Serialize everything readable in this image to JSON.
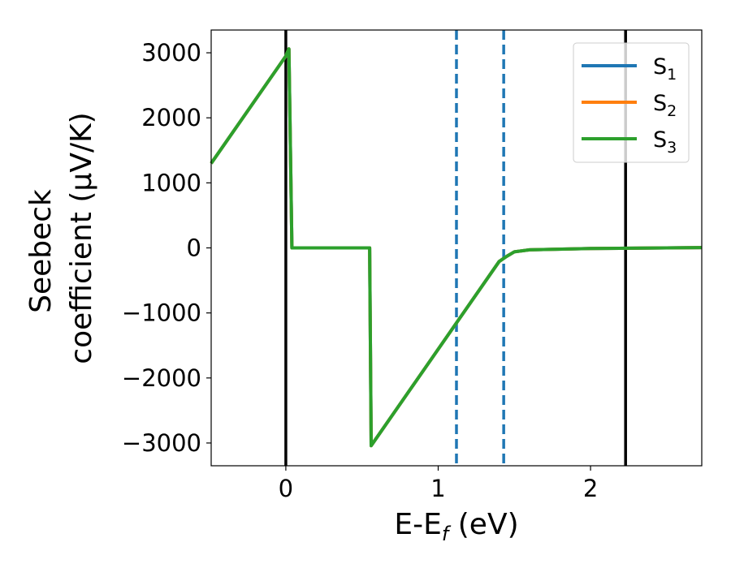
{
  "chart_data": {
    "type": "line",
    "xlabel": "E-E",
    "xlabel_sub": "f",
    "xlabel_unit": " (eV)",
    "ylabel_line1": "Seebeck",
    "ylabel_line2": "coefficient  (μV/K)",
    "xlim": [
      -0.49,
      2.73
    ],
    "ylim": [
      -3350,
      3350
    ],
    "xticks": [
      0,
      1,
      2
    ],
    "xtick_labels": [
      "0",
      "1",
      "2"
    ],
    "yticks": [
      -3000,
      -2000,
      -1000,
      0,
      1000,
      2000,
      3000
    ],
    "ytick_labels": [
      "−3000",
      "−2000",
      "−1000",
      "0",
      "1000",
      "2000",
      "3000"
    ],
    "grid": false,
    "legend_position": "top-right",
    "series": [
      {
        "name": "S",
        "sub": "1",
        "color": "#1f77b4",
        "x": [
          -0.49,
          0.0,
          0.02,
          0.04,
          0.55,
          0.56,
          1.4,
          1.45,
          1.5,
          1.6,
          2.0,
          2.73
        ],
        "y": [
          1300,
          2950,
          3060,
          0,
          0,
          -3040,
          -210,
          -130,
          -60,
          -30,
          -10,
          5
        ]
      },
      {
        "name": "S",
        "sub": "2",
        "color": "#ff7f0e",
        "x": [
          -0.49,
          0.0,
          0.02,
          0.04,
          0.55,
          0.56,
          1.4,
          1.45,
          1.5,
          1.6,
          2.0,
          2.73
        ],
        "y": [
          1300,
          2950,
          3060,
          0,
          0,
          -3040,
          -210,
          -130,
          -60,
          -30,
          -10,
          5
        ]
      },
      {
        "name": "S",
        "sub": "3",
        "color": "#2ca02c",
        "x": [
          -0.49,
          0.0,
          0.02,
          0.04,
          0.55,
          0.56,
          1.4,
          1.45,
          1.5,
          1.6,
          2.0,
          2.73
        ],
        "y": [
          1300,
          2950,
          3060,
          0,
          0,
          -3040,
          -210,
          -130,
          -60,
          -30,
          -10,
          5
        ]
      }
    ],
    "vlines": [
      {
        "x": 0.0,
        "color": "#000000",
        "style": "solid"
      },
      {
        "x": 2.23,
        "color": "#000000",
        "style": "solid"
      },
      {
        "x": 1.12,
        "color": "#1f77b4",
        "style": "dashed"
      },
      {
        "x": 1.43,
        "color": "#1f77b4",
        "style": "dashed"
      }
    ]
  }
}
